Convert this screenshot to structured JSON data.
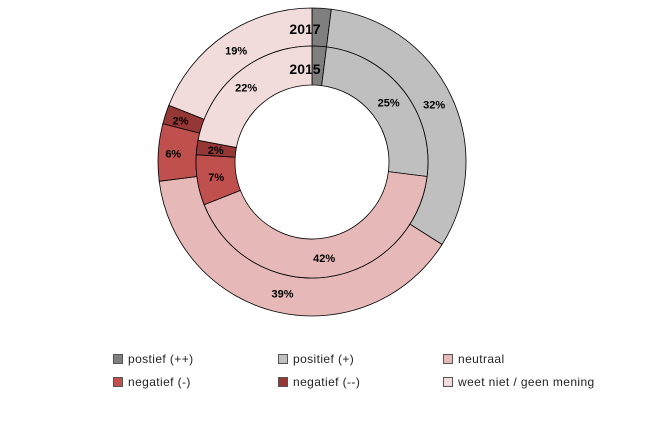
{
  "chart_data": {
    "type": "pie",
    "subtype": "nested-donut",
    "categories": [
      "postief (++)",
      "positief (+)",
      "neutraal",
      "negatief (-)",
      "negatief (--)",
      "weet niet / geen mening"
    ],
    "colors": [
      "#7f7f7f",
      "#bfbfbf",
      "#e6b9b8",
      "#c0504d",
      "#953735",
      "#f2dcdb"
    ],
    "series": [
      {
        "name": "2017",
        "ring": "outer",
        "values": [
          2,
          32,
          39,
          6,
          2,
          19
        ],
        "labels": [
          "",
          "32%",
          "39%",
          "6%",
          "2%",
          "19%"
        ]
      },
      {
        "name": "2015",
        "ring": "inner",
        "values": [
          2,
          25,
          42,
          7,
          2,
          22
        ],
        "labels": [
          "",
          "25%",
          "42%",
          "7%",
          "2%",
          "22%"
        ]
      }
    ],
    "legend_position": "bottom"
  }
}
